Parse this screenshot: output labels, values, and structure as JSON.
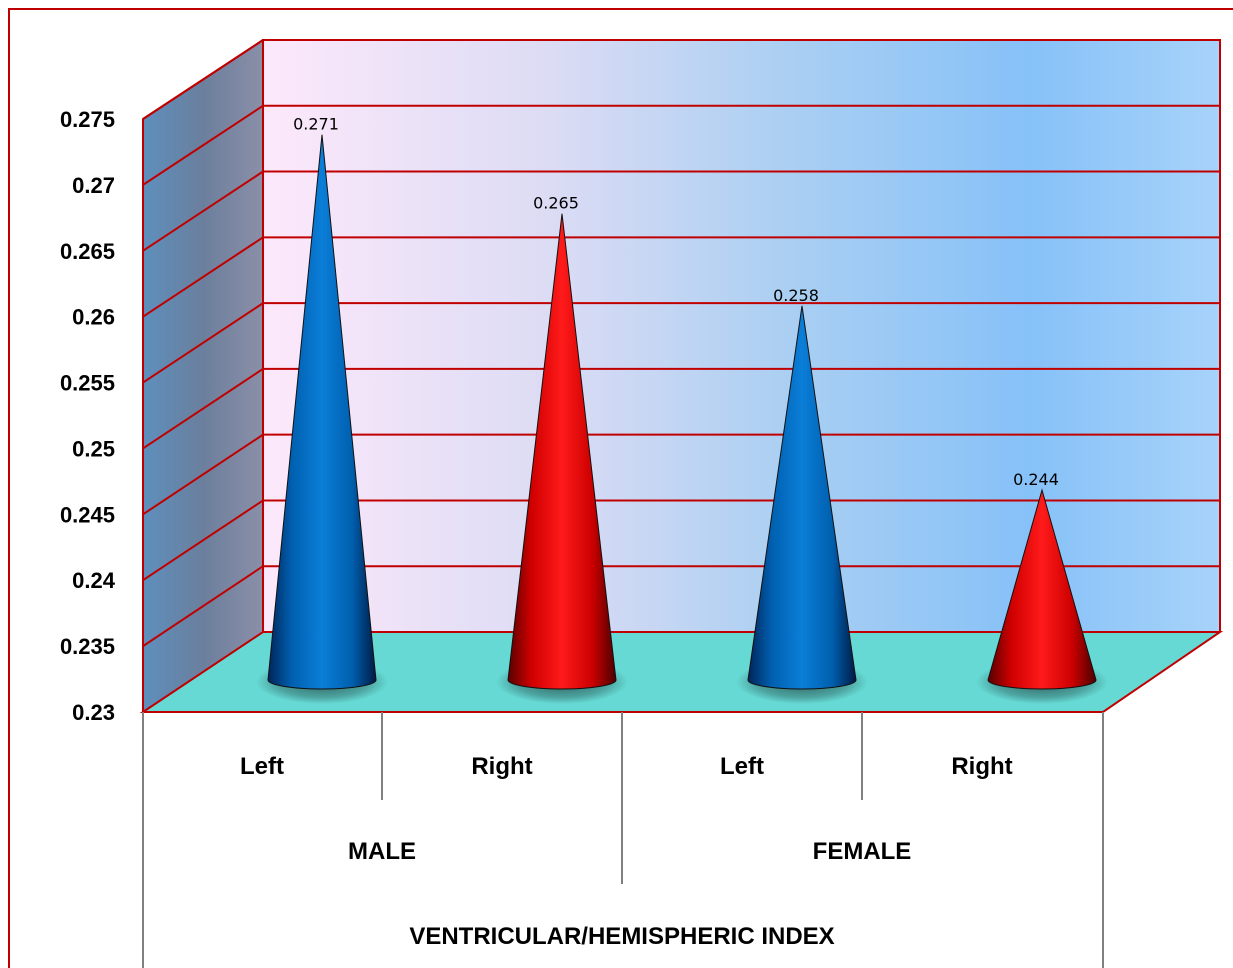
{
  "chart_data": {
    "type": "bar",
    "shape": "cone-3d",
    "title": "",
    "xlabel": "VENTRICULAR/HEMISPHERIC INDEX",
    "ylabel": "",
    "ylim": [
      0.23,
      0.275
    ],
    "yticks": [
      "0.23",
      "0.235",
      "0.24",
      "0.245",
      "0.25",
      "0.255",
      "0.26",
      "0.265",
      "0.27",
      "0.275"
    ],
    "groups": [
      "MALE",
      "FEMALE"
    ],
    "categories": [
      "Left",
      "Right",
      "Left",
      "Right"
    ],
    "values": [
      0.271,
      0.265,
      0.258,
      0.244
    ],
    "data_labels": [
      "0.271",
      "0.265",
      "0.258",
      "0.244"
    ],
    "grid": true,
    "legend": "none",
    "colors": {
      "Left": "#0070c0",
      "Right": "#ff0000",
      "gridline": "#c00000",
      "floor": "#66d9d4",
      "frame_border": "#c00000"
    }
  }
}
